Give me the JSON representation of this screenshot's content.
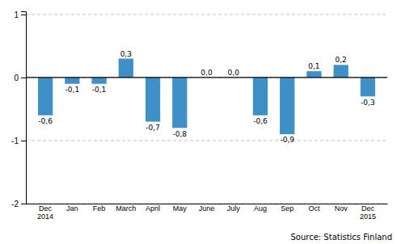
{
  "chart_data": {
    "type": "bar",
    "categories": [
      "Dec\n2014",
      "Jan",
      "Feb",
      "March",
      "April",
      "May",
      "June",
      "July",
      "Aug",
      "Sep",
      "Oct",
      "Nov",
      "Dec\n2015"
    ],
    "values": [
      -0.6,
      -0.1,
      -0.1,
      0.3,
      -0.7,
      -0.8,
      0.0,
      0.0,
      -0.6,
      -0.9,
      0.1,
      0.2,
      -0.3
    ],
    "value_labels": [
      "-0,6",
      "-0,1",
      "-0,1",
      "0,3",
      "-0,7",
      "-0,8",
      "0,0",
      "0,0",
      "-0,6",
      "-0,9",
      "0,1",
      "0,2",
      "-0,3"
    ],
    "data_labels": true,
    "color": "#4090C8",
    "ylim": [
      -2,
      1.05
    ],
    "yticks": [
      -2,
      -1,
      0,
      1
    ],
    "grid": true,
    "annotations": [
      "Source: Statistics Finland"
    ]
  }
}
